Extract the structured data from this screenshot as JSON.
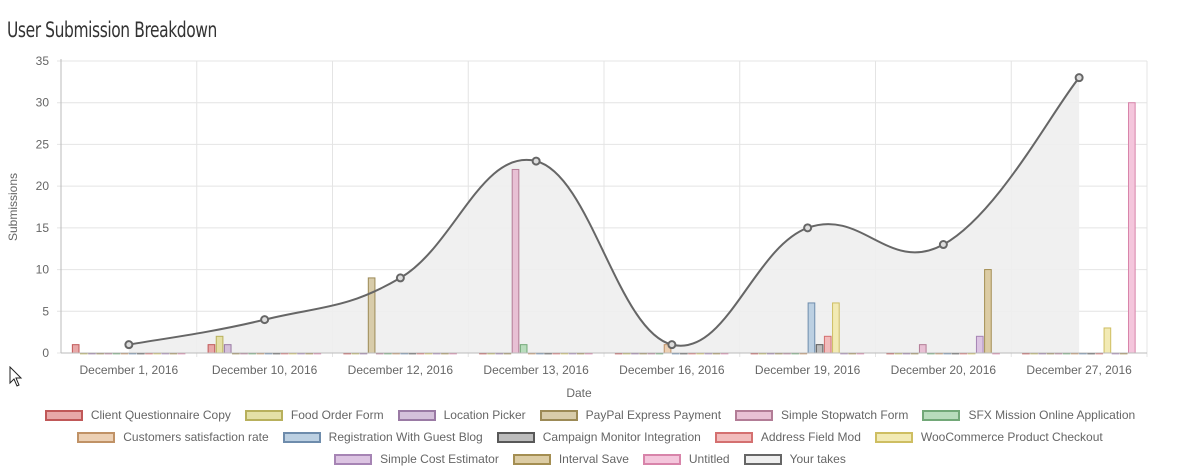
{
  "title": "User Submission Breakdown",
  "chart_data": {
    "type": "bar",
    "xlabel": "Date",
    "ylabel": "Submissions",
    "ylim": [
      0,
      35
    ],
    "yticks": [
      0,
      5,
      10,
      15,
      20,
      25,
      30,
      35
    ],
    "grid": true,
    "legend_position": "bottom",
    "categories": [
      "December 1, 2016",
      "December 10, 2016",
      "December 12, 2016",
      "December 13, 2016",
      "December 16, 2016",
      "December 19, 2016",
      "December 20, 2016",
      "December 27, 2016"
    ],
    "series": [
      {
        "name": "Client Questionnaire Copy",
        "fill": "#e8a8a8",
        "stroke": "#c05858",
        "values": [
          1,
          1,
          0,
          0,
          0,
          0,
          0,
          0
        ]
      },
      {
        "name": "Food Order Form",
        "fill": "#e4e0a6",
        "stroke": "#b8b05c",
        "values": [
          0,
          2,
          0,
          0,
          0,
          0,
          0,
          0
        ]
      },
      {
        "name": "Location Picker",
        "fill": "#d4c0da",
        "stroke": "#9a7aa4",
        "values": [
          0,
          1,
          0,
          0,
          0,
          0,
          0,
          0
        ]
      },
      {
        "name": "PayPal Express Payment",
        "fill": "#d8ccaa",
        "stroke": "#9c8a56",
        "values": [
          0,
          0,
          9,
          0,
          0,
          0,
          0,
          0
        ]
      },
      {
        "name": "Simple Stopwatch Form",
        "fill": "#e8c0d4",
        "stroke": "#b27c96",
        "values": [
          0,
          0,
          0,
          22,
          0,
          0,
          1,
          0
        ]
      },
      {
        "name": "SFX Mission Online Application",
        "fill": "#b8dcbc",
        "stroke": "#72a878",
        "values": [
          0,
          0,
          0,
          1,
          0,
          0,
          0,
          0
        ]
      },
      {
        "name": "Customers satisfaction rate",
        "fill": "#ecd0b4",
        "stroke": "#c09266",
        "values": [
          0,
          0,
          0,
          0,
          1,
          0,
          0,
          0
        ]
      },
      {
        "name": "Registration With Guest Blog",
        "fill": "#bcd0e2",
        "stroke": "#6e8cac",
        "values": [
          0,
          0,
          0,
          0,
          0,
          6,
          0,
          0
        ]
      },
      {
        "name": "Campaign Monitor Integration",
        "fill": "#bcbcbc",
        "stroke": "#585858",
        "values": [
          0,
          0,
          0,
          0,
          0,
          1,
          0,
          0
        ]
      },
      {
        "name": "Address Field Mod",
        "fill": "#f2bcbc",
        "stroke": "#d47070",
        "values": [
          0,
          0,
          0,
          0,
          0,
          2,
          0,
          0
        ]
      },
      {
        "name": "WooCommerce Product Checkout",
        "fill": "#f2eab4",
        "stroke": "#cebe62",
        "values": [
          0,
          0,
          0,
          0,
          0,
          6,
          0,
          3
        ]
      },
      {
        "name": "Simple Cost Estimator",
        "fill": "#dcc4e2",
        "stroke": "#a684b4",
        "values": [
          0,
          0,
          0,
          0,
          0,
          0,
          2,
          0
        ]
      },
      {
        "name": "Interval Save",
        "fill": "#dccca4",
        "stroke": "#a48e52",
        "values": [
          0,
          0,
          0,
          0,
          0,
          0,
          10,
          0
        ]
      },
      {
        "name": "Untitled",
        "fill": "#f4c6dc",
        "stroke": "#d884aa",
        "values": [
          0,
          0,
          0,
          0,
          0,
          0,
          0,
          30
        ]
      },
      {
        "name": "Your takes",
        "type": "area",
        "fill": "#eeeeee",
        "stroke": "#666666",
        "values": [
          1,
          4,
          9,
          23,
          1,
          15,
          13,
          33
        ]
      }
    ]
  }
}
